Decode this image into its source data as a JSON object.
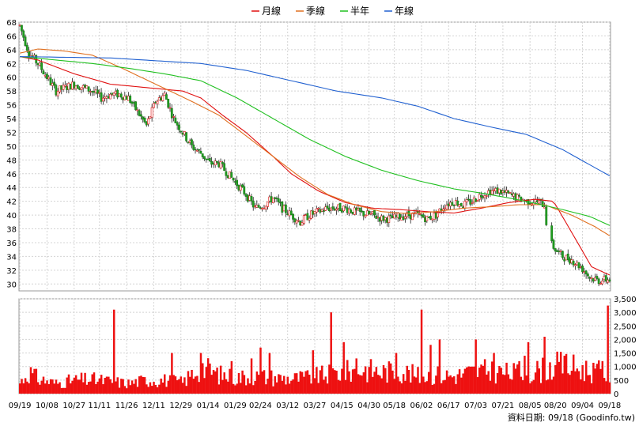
{
  "legend": [
    {
      "label": "月線",
      "color": "#e01010"
    },
    {
      "label": "季線",
      "color": "#e07020"
    },
    {
      "label": "半年",
      "color": "#20c020"
    },
    {
      "label": "年線",
      "color": "#2060d0"
    }
  ],
  "footer_text": "資料日期: 09/18  (Goodinfo.tw)",
  "chart_data": [
    {
      "type": "candlestick",
      "title": "",
      "ylim": [
        29,
        68
      ],
      "y_ticks": [
        30,
        32,
        34,
        36,
        38,
        40,
        42,
        44,
        46,
        48,
        50,
        52,
        54,
        56,
        58,
        60,
        62,
        64,
        66,
        68
      ],
      "grid": true,
      "legend_position": "top-center",
      "up_color": "#e01010",
      "down_color": "#20a020",
      "series": [
        {
          "name": "月線",
          "color": "#e01010",
          "points": [
            [
              0,
              63
            ],
            [
              10,
              62.5
            ],
            [
              30,
              60.5
            ],
            [
              50,
              59
            ],
            [
              70,
              58.5
            ],
            [
              90,
              58
            ],
            [
              100,
              57
            ],
            [
              112,
              54.5
            ],
            [
              125,
              52
            ],
            [
              140,
              48.5
            ],
            [
              150,
              46
            ],
            [
              165,
              43.5
            ],
            [
              180,
              41.8
            ],
            [
              195,
              41
            ],
            [
              210,
              40.8
            ],
            [
              225,
              40.5
            ],
            [
              240,
              40.3
            ],
            [
              255,
              41
            ],
            [
              270,
              41.8
            ],
            [
              285,
              42.3
            ],
            [
              295,
              42
            ],
            [
              305,
              37.5
            ],
            [
              316,
              32.5
            ],
            [
              326,
              31.3
            ]
          ]
        },
        {
          "name": "季線",
          "color": "#e07020",
          "points": [
            [
              0,
              63.5
            ],
            [
              10,
              64.1
            ],
            [
              25,
              63.8
            ],
            [
              40,
              63.2
            ],
            [
              55,
              61.5
            ],
            [
              75,
              59
            ],
            [
              95,
              56.5
            ],
            [
              110,
              54.5
            ],
            [
              125,
              51.5
            ],
            [
              140,
              48.5
            ],
            [
              155,
              45.5
            ],
            [
              170,
              43
            ],
            [
              185,
              41.5
            ],
            [
              200,
              40.5
            ],
            [
              215,
              40.2
            ],
            [
              230,
              40.5
            ],
            [
              245,
              41
            ],
            [
              260,
              41.2
            ],
            [
              275,
              41.5
            ],
            [
              290,
              41.5
            ],
            [
              305,
              40
            ],
            [
              318,
              38.3
            ],
            [
              326,
              37
            ]
          ]
        },
        {
          "name": "半年",
          "color": "#20c020",
          "points": [
            [
              0,
              63
            ],
            [
              20,
              62.5
            ],
            [
              40,
              62
            ],
            [
              60,
              61.3
            ],
            [
              80,
              60.5
            ],
            [
              100,
              59.5
            ],
            [
              120,
              57
            ],
            [
              140,
              54
            ],
            [
              160,
              51
            ],
            [
              180,
              48.5
            ],
            [
              200,
              46.5
            ],
            [
              220,
              45
            ],
            [
              240,
              43.8
            ],
            [
              255,
              43.2
            ],
            [
              270,
              42.5
            ],
            [
              285,
              41.7
            ],
            [
              300,
              40.8
            ],
            [
              315,
              39.8
            ],
            [
              326,
              38.5
            ]
          ]
        },
        {
          "name": "年線",
          "color": "#2060d0",
          "points": [
            [
              0,
              63
            ],
            [
              50,
              62.8
            ],
            [
              100,
              62
            ],
            [
              125,
              61
            ],
            [
              150,
              59.5
            ],
            [
              175,
              58
            ],
            [
              200,
              57
            ],
            [
              220,
              55.8
            ],
            [
              240,
              54
            ],
            [
              260,
              52.8
            ],
            [
              280,
              51.7
            ],
            [
              300,
              49.5
            ],
            [
              315,
              47.3
            ],
            [
              326,
              45.7
            ]
          ]
        }
      ],
      "candles_anchor": [
        [
          0,
          67.5
        ],
        [
          5,
          63.5
        ],
        [
          10,
          62
        ],
        [
          15,
          60
        ],
        [
          20,
          58
        ],
        [
          25,
          58.5
        ],
        [
          30,
          59
        ],
        [
          35,
          58.5
        ],
        [
          40,
          58
        ],
        [
          45,
          57
        ],
        [
          50,
          57.5
        ],
        [
          55,
          57.5
        ],
        [
          60,
          57
        ],
        [
          65,
          55
        ],
        [
          70,
          53
        ],
        [
          75,
          56.5
        ],
        [
          80,
          57.5
        ],
        [
          85,
          54
        ],
        [
          90,
          52
        ],
        [
          95,
          50
        ],
        [
          100,
          49
        ],
        [
          105,
          47.5
        ],
        [
          110,
          47.5
        ],
        [
          115,
          46
        ],
        [
          120,
          44.5
        ],
        [
          125,
          43
        ],
        [
          130,
          41
        ],
        [
          135,
          41.5
        ],
        [
          140,
          42.5
        ],
        [
          145,
          41
        ],
        [
          150,
          40
        ],
        [
          155,
          39
        ],
        [
          160,
          40
        ],
        [
          165,
          40.5
        ],
        [
          170,
          41
        ],
        [
          175,
          41
        ],
        [
          180,
          41
        ],
        [
          185,
          40.5
        ],
        [
          190,
          40.2
        ],
        [
          195,
          40
        ],
        [
          200,
          39.5
        ],
        [
          205,
          39.5
        ],
        [
          210,
          39.8
        ],
        [
          215,
          40
        ],
        [
          220,
          40
        ],
        [
          225,
          39.5
        ],
        [
          230,
          40
        ],
        [
          235,
          41.5
        ],
        [
          240,
          42
        ],
        [
          245,
          41.5
        ],
        [
          250,
          42
        ],
        [
          255,
          43
        ],
        [
          260,
          43.5
        ],
        [
          265,
          43.5
        ],
        [
          270,
          43
        ],
        [
          275,
          42.5
        ],
        [
          280,
          42
        ],
        [
          285,
          42
        ],
        [
          290,
          41.5
        ],
        [
          292,
          36.5
        ],
        [
          296,
          35
        ],
        [
          300,
          34
        ],
        [
          305,
          33.5
        ],
        [
          310,
          32.5
        ],
        [
          315,
          31
        ],
        [
          320,
          30.5
        ],
        [
          326,
          30.7
        ]
      ],
      "x_tick_labels": [
        "09/19",
        "10/08",
        "10/27",
        "11/11",
        "11/26",
        "12/11",
        "12/29",
        "01/14",
        "01/29",
        "02/24",
        "03/12",
        "03/27",
        "04/15",
        "04/30",
        "05/18",
        "06/02",
        "06/17",
        "07/03",
        "07/21",
        "08/05",
        "08/20",
        "09/04",
        "09/18"
      ]
    },
    {
      "type": "bar",
      "title": "",
      "ylim": [
        0,
        3500
      ],
      "y_ticks": [
        0,
        500,
        1000,
        1500,
        2000,
        2500,
        3000,
        3500
      ],
      "y_tick_labels": [
        "0",
        "500",
        "1,000",
        "1,500",
        "2,000",
        "2,500",
        "3,000",
        "3,500"
      ],
      "bar_color": "#ee1111",
      "volume_anchor": [
        [
          0,
          400
        ],
        [
          5,
          800
        ],
        [
          10,
          550
        ],
        [
          20,
          380
        ],
        [
          30,
          500
        ],
        [
          40,
          520
        ],
        [
          50,
          450
        ],
        [
          60,
          380
        ],
        [
          70,
          500
        ],
        [
          80,
          500
        ],
        [
          90,
          420
        ],
        [
          100,
          1000
        ],
        [
          110,
          700
        ],
        [
          120,
          600
        ],
        [
          130,
          650
        ],
        [
          140,
          600
        ],
        [
          150,
          550
        ],
        [
          160,
          600
        ],
        [
          170,
          700
        ],
        [
          180,
          800
        ],
        [
          190,
          900
        ],
        [
          200,
          800
        ],
        [
          210,
          850
        ],
        [
          220,
          650
        ],
        [
          230,
          700
        ],
        [
          240,
          650
        ],
        [
          250,
          800
        ],
        [
          260,
          850
        ],
        [
          270,
          750
        ],
        [
          280,
          750
        ],
        [
          290,
          900
        ],
        [
          300,
          1050
        ],
        [
          310,
          900
        ],
        [
          320,
          800
        ],
        [
          326,
          600
        ]
      ],
      "volume_spikes": [
        [
          52,
          3100
        ],
        [
          84,
          1500
        ],
        [
          100,
          1500
        ],
        [
          117,
          1200
        ],
        [
          128,
          1300
        ],
        [
          133,
          1700
        ],
        [
          138,
          1500
        ],
        [
          162,
          1600
        ],
        [
          172,
          3000
        ],
        [
          179,
          1900
        ],
        [
          186,
          1300
        ],
        [
          208,
          1500
        ],
        [
          222,
          3100
        ],
        [
          227,
          1800
        ],
        [
          232,
          2000
        ],
        [
          252,
          2000
        ],
        [
          262,
          1500
        ],
        [
          276,
          1200
        ],
        [
          279,
          1400
        ],
        [
          281,
          1900
        ],
        [
          290,
          2100
        ],
        [
          301,
          1400
        ],
        [
          319,
          1100
        ],
        [
          322,
          1200
        ],
        [
          325,
          3250
        ]
      ]
    }
  ]
}
